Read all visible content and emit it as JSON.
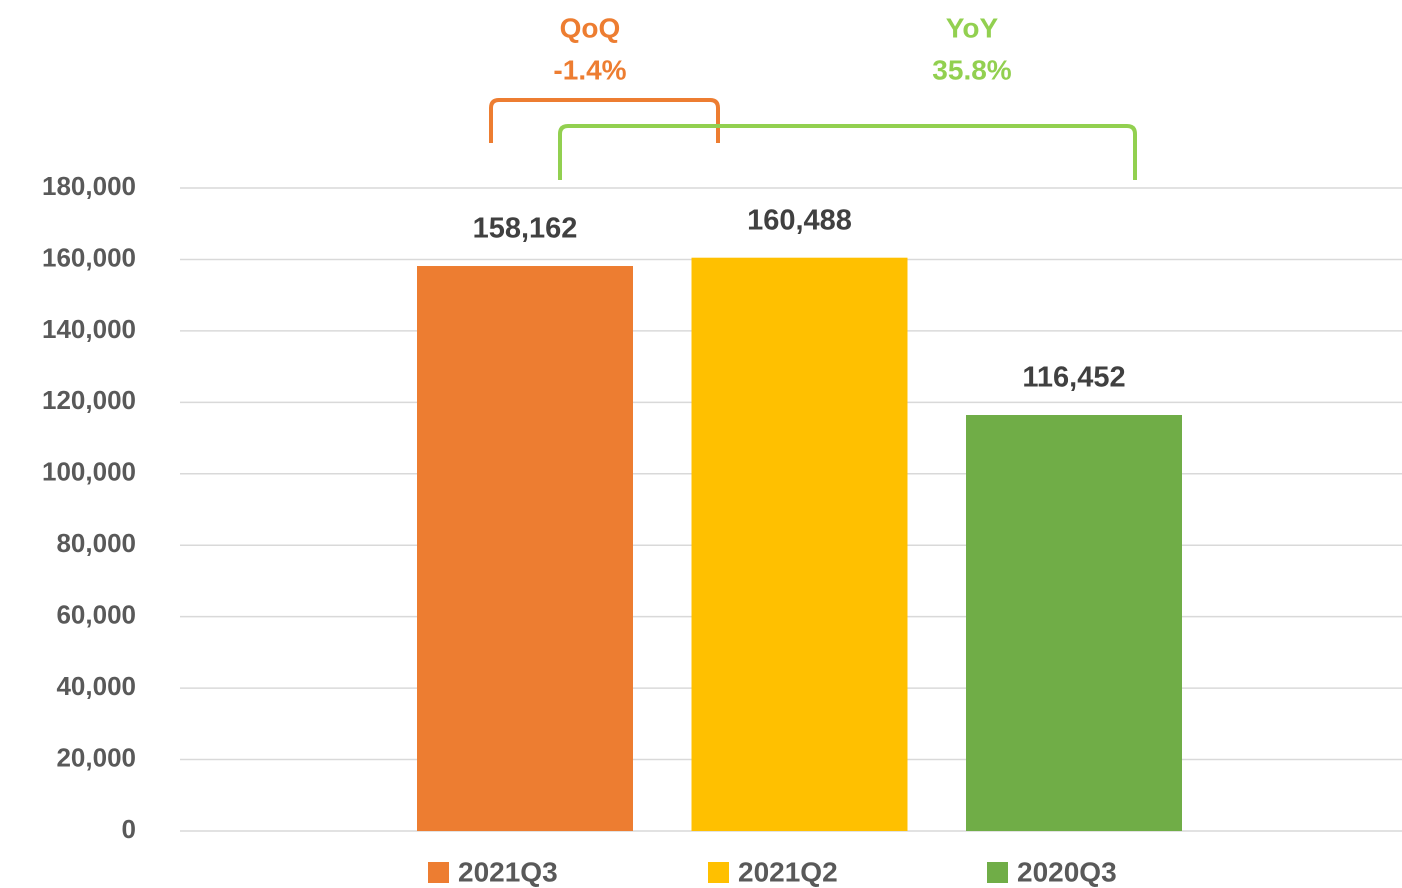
{
  "chart_data": {
    "type": "bar",
    "categories": [
      null
    ],
    "series": [
      {
        "name": "2021Q3",
        "color": "#ed7d31",
        "values": [
          158162
        ],
        "value_labels": [
          "158,162"
        ]
      },
      {
        "name": "2021Q2",
        "color": "#ffc000",
        "values": [
          160488
        ],
        "value_labels": [
          "160,488"
        ]
      },
      {
        "name": "2020Q3",
        "color": "#70ad47",
        "values": [
          116452
        ],
        "value_labels": [
          "116,452"
        ]
      }
    ],
    "ylim": [
      0,
      180000
    ],
    "yticks": [
      0,
      {
        "value": 20000,
        "label": "20,000"
      },
      {
        "value": 40000,
        "label": "40,000"
      },
      {
        "value": 60000,
        "label": "60,000"
      },
      {
        "value": 80000,
        "label": "80,000"
      },
      {
        "value": 100000,
        "label": "100,000"
      },
      {
        "value": 120000,
        "label": "120,000"
      },
      {
        "value": 140000,
        "label": "140,000"
      },
      {
        "value": 160000,
        "label": "160,000"
      },
      {
        "value": 180000,
        "label": "180,000"
      }
    ],
    "grid": true,
    "legend": "bottom",
    "annotations": [
      {
        "text": "QoQ",
        "value": -1.4,
        "value_label": "-1.4%",
        "color": "#ed7d31"
      },
      {
        "text": "YoY",
        "value": 35.8,
        "value_label": "35.8%",
        "color": "#92d050"
      }
    ]
  }
}
